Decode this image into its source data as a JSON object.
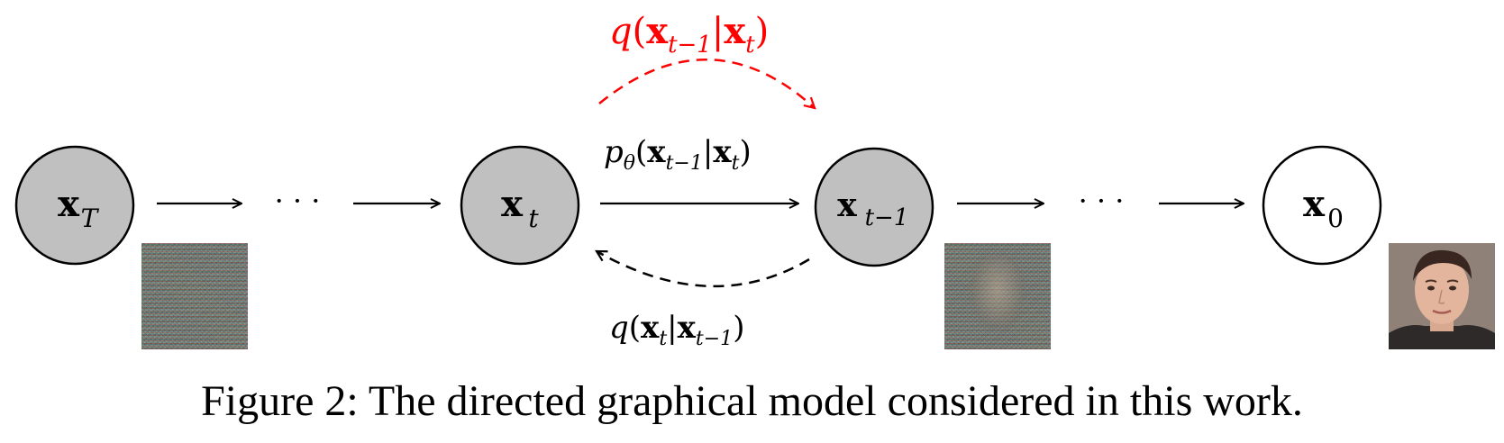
{
  "nodes": [
    {
      "id": "xT",
      "base": "x",
      "sub": "T",
      "filled": true
    },
    {
      "id": "xt",
      "base": "x",
      "sub": "t",
      "filled": true
    },
    {
      "id": "xt1",
      "base": "x",
      "sub": "t−1",
      "filled": true
    },
    {
      "id": "x0",
      "base": "x",
      "sub": "0",
      "filled": false
    }
  ],
  "ellipsis": "· · ·",
  "labels": {
    "top_red": {
      "func": "q",
      "open": "(",
      "a": "x",
      "a_sub": "t−1",
      "bar": "|",
      "b": "x",
      "b_sub": "t",
      "close": ")"
    },
    "forward": {
      "func": "p",
      "func_sub": "θ",
      "open": "(",
      "a": "x",
      "a_sub": "t−1",
      "bar": "|",
      "b": "x",
      "b_sub": "t",
      "close": ")"
    },
    "backward": {
      "func": "q",
      "open": "(",
      "a": "x",
      "a_sub": "t",
      "bar": "|",
      "b": "x",
      "b_sub": "t−1",
      "close": ")"
    }
  },
  "images": [
    {
      "name": "pure-noise-sample"
    },
    {
      "name": "noisy-face-sample"
    },
    {
      "name": "clean-face-sample"
    }
  ],
  "colors": {
    "node_fill": "#c0c0c0",
    "highlight": "#ff0000",
    "stroke": "#000000"
  },
  "caption": {
    "prefix": "Figure 2:",
    "text": " The directed graphical model considered in this work."
  }
}
